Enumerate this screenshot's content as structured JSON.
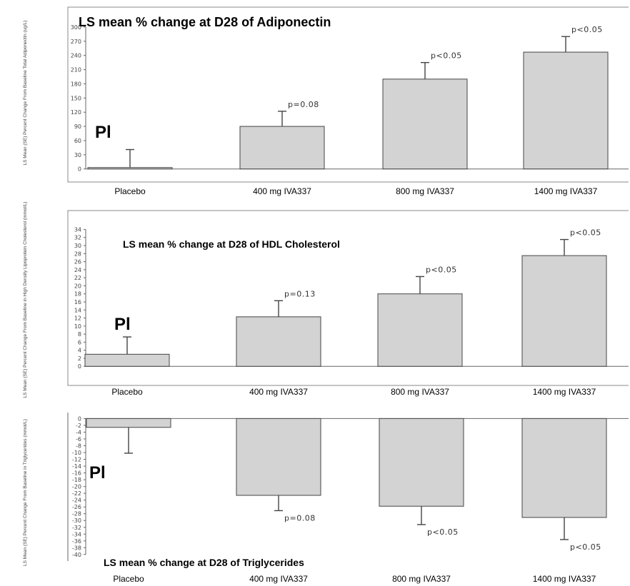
{
  "chart_data": [
    {
      "type": "bar",
      "title": "LS mean % change at D28 of Adiponectin",
      "ylabel": "LS Mean (SE) Percent Change From Baseline Total Adiponectin (ug/L)",
      "categories": [
        "Placebo",
        "400 mg IVA337",
        "800 mg IVA337",
        "1400 mg IVA337"
      ],
      "values": [
        3,
        90,
        190,
        247
      ],
      "errors": [
        38,
        32,
        35,
        33
      ],
      "pvalues": [
        "",
        "p=0.08",
        "p<0.05",
        "p<0.05"
      ],
      "yticks": [
        0,
        30,
        60,
        90,
        120,
        150,
        180,
        210,
        240,
        270,
        300
      ],
      "ylim": [
        -8,
        315
      ],
      "marker": "Pl"
    },
    {
      "type": "bar",
      "title": "LS mean % change at D28 of HDL Cholesterol",
      "ylabel": "LS Mean (SE) Percent Change From Baseline in High Density Lipoprotein Cholesterol (mmol/L)",
      "categories": [
        "Placebo",
        "400 mg IVA337",
        "800 mg IVA337",
        "1400 mg IVA337"
      ],
      "values": [
        3,
        12.3,
        18,
        27.5
      ],
      "errors": [
        4.3,
        4,
        4.3,
        4
      ],
      "pvalues": [
        "",
        "p=0.13",
        "p<0.05",
        "p<0.05"
      ],
      "yticks": [
        0,
        2,
        4,
        6,
        8,
        10,
        12,
        14,
        16,
        18,
        20,
        22,
        24,
        26,
        28,
        30,
        32,
        34
      ],
      "ylim": [
        -1.2,
        35.5
      ],
      "marker": "Pl"
    },
    {
      "type": "bar",
      "title": "LS mean % change at D28 of Triglycerides",
      "ylabel": "LS Mean (SE) Percent Change From Baseline in Triglycerides (mmol/L)",
      "categories": [
        "Placebo",
        "400 mg IVA337",
        "800 mg IVA337",
        "1400 mg IVA337"
      ],
      "category_labels": [
        "Placebo",
        "400 mg IVA337",
        "800 mg IVA337",
        "1400 mg  IVA337"
      ],
      "values": [
        -2.6,
        -22.6,
        -25.8,
        -29.1
      ],
      "errors": [
        7.6,
        4.5,
        5.4,
        6.5
      ],
      "pvalues": [
        "",
        "p=0.08",
        "p<0.05",
        "p<0.05"
      ],
      "yticks": [
        0,
        -2,
        -4,
        -6,
        -8,
        -10,
        -12,
        -14,
        -16,
        -18,
        -20,
        -22,
        -24,
        -26,
        -28,
        -30,
        -32,
        -34,
        -36,
        -38,
        -40
      ],
      "ylim": [
        -41.5,
        0.5
      ],
      "marker": "Pl"
    }
  ]
}
